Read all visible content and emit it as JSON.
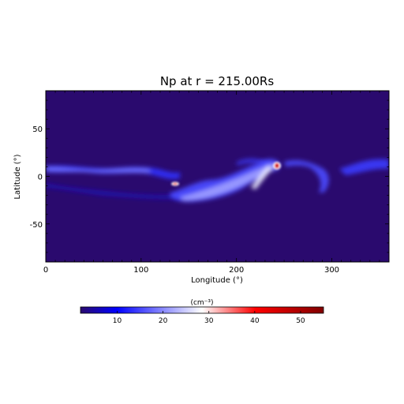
{
  "chart_data": {
    "type": "heatmap",
    "title": "Np at r = 215.00Rs",
    "xlabel": "Longitude (°)",
    "ylabel": "Latitude (°)",
    "xlim": [
      0,
      360
    ],
    "ylim": [
      -90,
      90
    ],
    "xticks": [
      0,
      100,
      200,
      300
    ],
    "yticks": [
      -50,
      0,
      50
    ],
    "xtick_labels": [
      "0",
      "100",
      "200",
      "300"
    ],
    "ytick_labels": [
      "-50",
      "0",
      "50"
    ],
    "background_value": 2,
    "colorbar": {
      "label": "(cm⁻³)",
      "range": [
        2,
        55
      ],
      "ticks": [
        10,
        20,
        30,
        40,
        50
      ],
      "tick_labels": [
        "10",
        "20",
        "30",
        "40",
        "50"
      ],
      "colors": [
        "#2a0a6e",
        "#0000ff",
        "#ffffff",
        "#ff0000",
        "#800000"
      ]
    },
    "features": [
      {
        "name": "equatorial band",
        "lon": [
          0,
          360
        ],
        "lat": [
          3,
          12
        ],
        "value": 14
      },
      {
        "name": "streamer arc",
        "lon": [
          215,
          245
        ],
        "lat": [
          -25,
          14
        ],
        "value": 26
      },
      {
        "name": "dense core",
        "lon": [
          240,
          245
        ],
        "lat": [
          8,
          14
        ],
        "value": 52
      },
      {
        "name": "small knot",
        "lon": [
          132,
          140
        ],
        "lat": [
          -8,
          -5
        ],
        "value": 45
      }
    ]
  }
}
